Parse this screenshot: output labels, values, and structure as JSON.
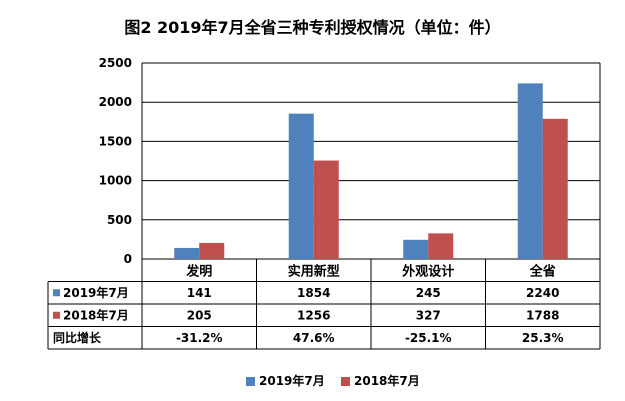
{
  "chart_data": {
    "type": "bar",
    "title": "图2  2019年7月全省三种专利授权情况（单位：件）",
    "categories": [
      "发明",
      "实用新型",
      "外观设计",
      "全省"
    ],
    "series": [
      {
        "name": "2019年7月",
        "values": [
          141,
          1854,
          245,
          2240
        ],
        "color": "#4F81BD"
      },
      {
        "name": "2018年7月",
        "values": [
          205,
          1256,
          327,
          1788
        ],
        "color": "#C0504D"
      }
    ],
    "ylim": [
      0,
      2500
    ],
    "yticks": [
      0,
      500,
      1000,
      1500,
      2000,
      2500
    ],
    "grid": true,
    "legend": "bottom",
    "table": {
      "row_labels": [
        "2019年7月",
        "2018年7月",
        "同比增长"
      ],
      "rows": [
        [
          "141",
          "1854",
          "245",
          "2240"
        ],
        [
          "205",
          "1256",
          "327",
          "1788"
        ],
        [
          "-31.2%",
          "47.6%",
          "-25.1%",
          "25.3%"
        ]
      ]
    }
  }
}
